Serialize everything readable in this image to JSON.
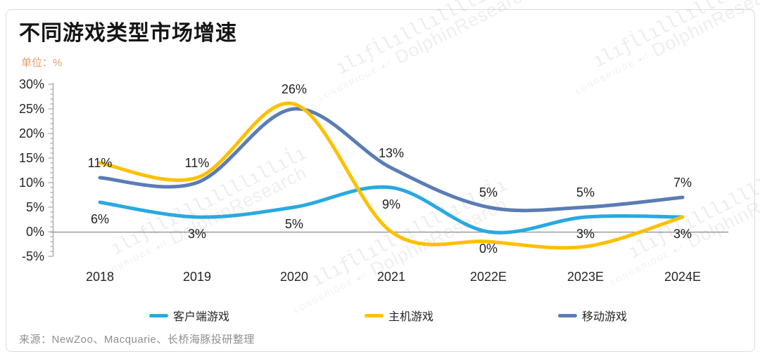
{
  "header": {
    "title": "不同游戏类型市场增速",
    "unit_label": "单位：%"
  },
  "chart_data": {
    "type": "line",
    "smooth": true,
    "grid": false,
    "legend_position": "bottom",
    "title": "不同游戏类型市场增速",
    "xlabel": "",
    "ylabel": "单位：%",
    "ylim": [
      -5,
      30
    ],
    "categories": [
      "2018",
      "2019",
      "2020",
      "2021",
      "2022E",
      "2023E",
      "2024E"
    ],
    "y_ticks": [
      {
        "value": 30,
        "label": "30%"
      },
      {
        "value": 25,
        "label": "25%"
      },
      {
        "value": 20,
        "label": "20%"
      },
      {
        "value": 15,
        "label": "15%"
      },
      {
        "value": 10,
        "label": "10%"
      },
      {
        "value": 5,
        "label": "5%"
      },
      {
        "value": 0,
        "label": "0%"
      },
      {
        "value": -5,
        "label": "-5%"
      }
    ],
    "series": [
      {
        "key": "client",
        "name": "客户端游戏",
        "color": "#29a9e0",
        "values": [
          6,
          3,
          5,
          9,
          0,
          3,
          3
        ]
      },
      {
        "key": "mobile",
        "name": "移动游戏",
        "color": "#5b7cb4",
        "values": [
          11,
          10,
          25,
          13,
          5,
          5,
          7
        ]
      },
      {
        "key": "console",
        "name": "主机游戏",
        "color": "#ffc000",
        "values": [
          14,
          11,
          26,
          0,
          -2,
          -3,
          3
        ]
      }
    ],
    "legend_order": [
      "客户端游戏",
      "主机游戏",
      "移动游戏"
    ],
    "data_labels": [
      {
        "series": 1,
        "index": 0,
        "label": "11%",
        "position": "above"
      },
      {
        "series": 0,
        "index": 0,
        "label": "6%",
        "position": "below"
      },
      {
        "series": 2,
        "index": 1,
        "label": "11%",
        "position": "above"
      },
      {
        "series": 0,
        "index": 1,
        "label": "3%",
        "position": "below"
      },
      {
        "series": 2,
        "index": 2,
        "label": "26%",
        "position": "above"
      },
      {
        "series": 0,
        "index": 2,
        "label": "5%",
        "position": "below"
      },
      {
        "series": 1,
        "index": 3,
        "label": "13%",
        "position": "above"
      },
      {
        "series": 0,
        "index": 3,
        "label": "9%",
        "position": "below"
      },
      {
        "series": 1,
        "index": 4,
        "label": "5%",
        "position": "above"
      },
      {
        "series": 0,
        "index": 4,
        "label": "0%",
        "position": "below"
      },
      {
        "series": 1,
        "index": 5,
        "label": "5%",
        "position": "above"
      },
      {
        "series": 0,
        "index": 5,
        "label": "3%",
        "position": "below"
      },
      {
        "series": 1,
        "index": 6,
        "label": "7%",
        "position": "above"
      },
      {
        "series": 0,
        "index": 6,
        "label": "3%",
        "position": "below"
      }
    ],
    "axis_colors": {
      "axis_line": "#a6a6a6",
      "zero_line": "#999999",
      "tick_label": "#262626",
      "data_label": "#1f1f1f"
    }
  },
  "footer": {
    "source": "来源：NewZoo、Macquarie、长桥海豚投研整理"
  },
  "watermark": {
    "brand_small": "LONGBRIDGE ◂ıl",
    "brand_large": "DolphinResearch",
    "bars_glyph": "ılıƒl̇lılllıllllıllıl̇ı"
  }
}
